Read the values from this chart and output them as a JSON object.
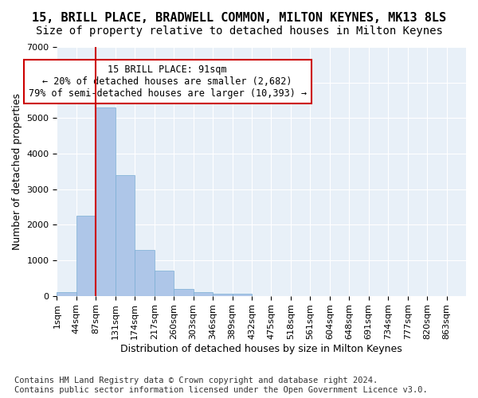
{
  "title1": "15, BRILL PLACE, BRADWELL COMMON, MILTON KEYNES, MK13 8LS",
  "title2": "Size of property relative to detached houses in Milton Keynes",
  "xlabel": "Distribution of detached houses by size in Milton Keynes",
  "ylabel": "Number of detached properties",
  "footnote": "Contains HM Land Registry data © Crown copyright and database right 2024.\nContains public sector information licensed under the Open Government Licence v3.0.",
  "bin_labels": [
    "1sqm",
    "44sqm",
    "87sqm",
    "131sqm",
    "174sqm",
    "217sqm",
    "260sqm",
    "303sqm",
    "346sqm",
    "389sqm",
    "432sqm",
    "475sqm",
    "518sqm",
    "561sqm",
    "604sqm",
    "648sqm",
    "691sqm",
    "734sqm",
    "777sqm",
    "820sqm",
    "863sqm"
  ],
  "bar_values": [
    100,
    2250,
    5300,
    3400,
    1300,
    700,
    200,
    100,
    55,
    50,
    0,
    0,
    0,
    0,
    0,
    0,
    0,
    0,
    0,
    0,
    0
  ],
  "bar_color": "#aec6e8",
  "bar_edge_color": "#7aaed4",
  "background_color": "#e8f0f8",
  "vline_x_index": 2,
  "vline_color": "#cc0000",
  "annotation_text": "15 BRILL PLACE: 91sqm\n← 20% of detached houses are smaller (2,682)\n79% of semi-detached houses are larger (10,393) →",
  "annotation_box_color": "#ffffff",
  "annotation_box_edge_color": "#cc0000",
  "ylim": [
    0,
    7000
  ],
  "yticks": [
    0,
    1000,
    2000,
    3000,
    4000,
    5000,
    6000,
    7000
  ],
  "title1_fontsize": 11,
  "title2_fontsize": 10,
  "xlabel_fontsize": 9,
  "ylabel_fontsize": 9,
  "footnote_fontsize": 7.5,
  "tick_fontsize": 8,
  "annotation_fontsize": 8.5
}
